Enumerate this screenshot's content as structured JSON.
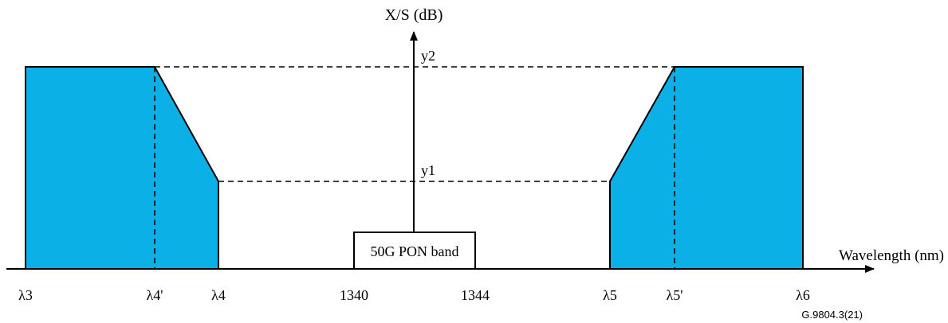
{
  "colors": {
    "fill": "#0bb0e6",
    "stroke": "#000000",
    "background": "#ffffff"
  },
  "axes": {
    "x_label": "Wavelength (nm)",
    "y_label": "X/S (dB)"
  },
  "levels": {
    "upper": "y2",
    "lower": "y1"
  },
  "band": {
    "label": "50G PON band"
  },
  "ticks": {
    "lambda3": "λ3",
    "lambda4_prime": "λ4'",
    "lambda4": "λ4",
    "band_start": "1340",
    "band_end": "1344",
    "lambda5": "λ5",
    "lambda5_prime": "λ5'",
    "lambda6": "λ6"
  },
  "figure_id": "G.9804.3(21)"
}
